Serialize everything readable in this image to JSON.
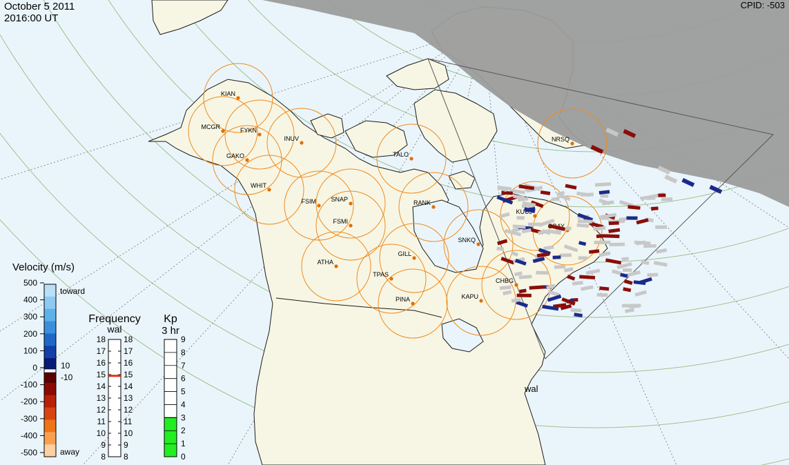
{
  "header": {
    "date": "October  5 2011",
    "time": "2016:00 UT",
    "cpid": "CPID:  -503"
  },
  "colors": {
    "ocean": "#eaf5fb",
    "land": "#f7f6e4",
    "night": "#9c9c9c",
    "grid": "#9fbf8e",
    "fov_circle": "#f08a1e",
    "station_dot": "#e07000",
    "kp_fill": "#22ee22",
    "freq_marker": "#e03010"
  },
  "stations": [
    {
      "code": "KIAN"
    },
    {
      "code": "MCGR"
    },
    {
      "code": "FYKN"
    },
    {
      "code": "INUV"
    },
    {
      "code": "GAKO"
    },
    {
      "code": "WHIT"
    },
    {
      "code": "FSIM"
    },
    {
      "code": "SNAP"
    },
    {
      "code": "FSMI"
    },
    {
      "code": "TALO"
    },
    {
      "code": "RANK"
    },
    {
      "code": "NRSQ"
    },
    {
      "code": "KUUJ"
    },
    {
      "code": "GBAY"
    },
    {
      "code": "SNKQ"
    },
    {
      "code": "ATHA"
    },
    {
      "code": "GILL"
    },
    {
      "code": "TPAS"
    },
    {
      "code": "PINA"
    },
    {
      "code": "KAPU"
    },
    {
      "code": "CHBG"
    }
  ],
  "radar_label": "wal",
  "velocity_scale": {
    "title": "Velocity (m/s)",
    "ticks": [
      "500",
      "400",
      "300",
      "200",
      "100",
      "0",
      "-100",
      "-200",
      "-300",
      "-400",
      "-500"
    ],
    "toward": "toward",
    "away": "away",
    "mid_upper": "10",
    "mid_lower": "-10",
    "colors_top_to_bottom": [
      "#b8e0f8",
      "#8ccaf2",
      "#5eb2ea",
      "#3a90dc",
      "#2068c8",
      "#1040a8",
      "#061a78",
      "#5a0000",
      "#8a0a04",
      "#b82008",
      "#d84410",
      "#ee7418",
      "#f8a050",
      "#fcd0a0"
    ]
  },
  "frequency_scale": {
    "title": "Frequency",
    "radar": "wal",
    "ticks": [
      "18",
      "17",
      "16",
      "15",
      "14",
      "13",
      "12",
      "11",
      "10",
      "9",
      "8"
    ],
    "current_mhz": 14.9
  },
  "kp_scale": {
    "title": "Kp",
    "subtitle": "3 hr",
    "ticks": [
      "9",
      "8",
      "7",
      "6",
      "5",
      "4",
      "3",
      "2",
      "1",
      "0"
    ],
    "value": 3
  }
}
